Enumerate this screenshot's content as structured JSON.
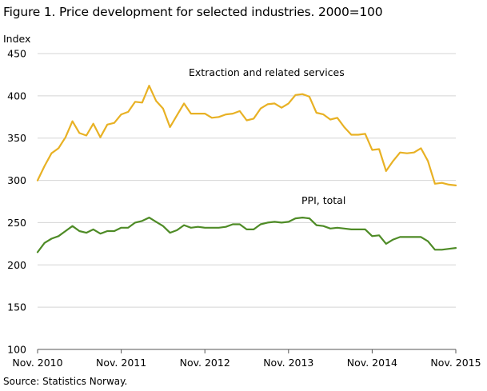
{
  "figure": {
    "title": "Figure 1. Price development for selected industries. 2000=100",
    "source": "Source: Statistics Norway."
  },
  "chart_data": {
    "type": "line",
    "ylabel": "Index",
    "ylim": [
      100,
      450
    ],
    "yticks": [
      100,
      150,
      200,
      250,
      300,
      350,
      400,
      450
    ],
    "xlabels": [
      "Nov. 2010",
      "Nov. 2011",
      "Nov. 2012",
      "Nov. 2013",
      "Nov. 2014",
      "Nov. 2015"
    ],
    "grid": "horizontal",
    "colors": {
      "extraction": "#e8b124",
      "ppi": "#4e8b26",
      "grid": "#d4d4d4",
      "axis": "#555555"
    },
    "series": [
      {
        "name": "Extraction and related services",
        "color": "#e8b124",
        "values": [
          300,
          317,
          332,
          338,
          351,
          370,
          356,
          353,
          367,
          351,
          366,
          368,
          378,
          381,
          393,
          392,
          412,
          394,
          385,
          363,
          377,
          391,
          379,
          379,
          379,
          374,
          375,
          378,
          379,
          382,
          371,
          373,
          385,
          390,
          391,
          386,
          391,
          401,
          402,
          399,
          380,
          378,
          372,
          374,
          363,
          354,
          354,
          355,
          336,
          337,
          311,
          323,
          333,
          332,
          333,
          338,
          323,
          296,
          297,
          295,
          294
        ]
      },
      {
        "name": "PPI, total",
        "color": "#4e8b26",
        "values": [
          215,
          226,
          231,
          234,
          240,
          246,
          240,
          238,
          242,
          237,
          240,
          240,
          244,
          244,
          250,
          252,
          256,
          251,
          246,
          238,
          241,
          247,
          244,
          245,
          244,
          244,
          244,
          245,
          248,
          248,
          242,
          242,
          248,
          250,
          251,
          250,
          251,
          255,
          256,
          255,
          247,
          246,
          243,
          244,
          243,
          242,
          242,
          242,
          234,
          235,
          225,
          230,
          233,
          233,
          233,
          233,
          228,
          218,
          218,
          219,
          220
        ]
      }
    ],
    "annotations": [
      {
        "text": "Extraction and related services",
        "series": 0
      },
      {
        "text": "PPI, total",
        "series": 1
      }
    ]
  }
}
